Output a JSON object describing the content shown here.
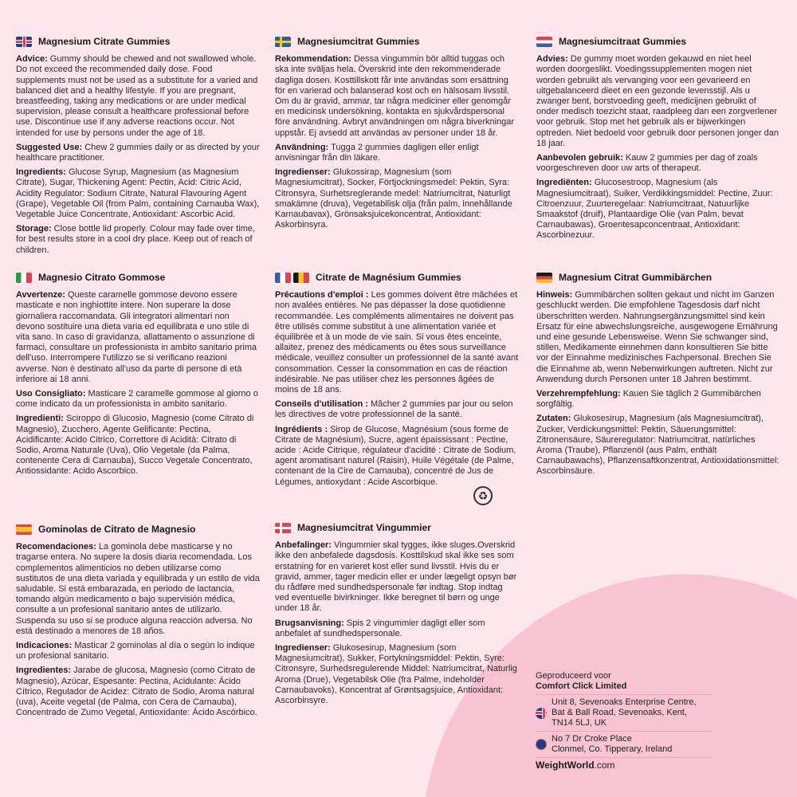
{
  "colors": {
    "background": "#fde6ec",
    "circle": "#f8c4d4"
  },
  "sections": {
    "en": {
      "flag": "uk-flag",
      "title": "Magnesium Citrate Gummies",
      "paras": [
        {
          "label": "Advice:",
          "text": " Gummy should be chewed and not swallowed whole. Do not exceed the recommended daily dose. Food supplements must not be used as a substitute for a varied and balanced diet and a healthy lifestyle. If you are pregnant, breastfeeding, taking any medications or are under medical supervision, please consult a healthcare professional before use. Discontinue use if any adverse reactions occur. Not intended for use by persons under the age of 18."
        },
        {
          "label": "Suggested Use:",
          "text": " Chew 2 gummies daily or as directed by your healthcare practitioner."
        },
        {
          "label": "Ingredients:",
          "text": " Glucose Syrup, Magnesium (as Magnesium Citrate), Sugar, Thickening Agent: Pectin, Acid: Citric Acid, Acidity Regulator: Sodium Citrate, Natural Flavouring Agent (Grape), Vegetable Oil (from Palm, containing Carnauba Wax), Vegetable Juice Concentrate, Antioxidant: Ascorbic Acid."
        },
        {
          "label": "Storage:",
          "text": " Close bottle lid properly. Colour may fade over time, for best results store in a cool dry place. Keep out of reach of children."
        }
      ]
    },
    "sv": {
      "flag": "sweden-flag",
      "title": "Magnesiumcitrat Gummies",
      "paras": [
        {
          "label": "Rekommendation:",
          "text": " Dessa vingummin bör alltid tuggas och ska inte sväljas hela. Överskrid inte den rekommenderade dagliga dosen. Kosttillskott får inte användas som ersättning för en varierad och balanserad kost och en hälsosam livsstil. Om du är gravid, ammar, tar några mediciner eller genomgår en medicinsk undersökning, kontakta en sjukvårdspersonal före användning. Avbryt användningen om några biverkningar uppstår. Ej avsedd att användas av personer under 18 år."
        },
        {
          "label": "Användning:",
          "text": " Tugga 2 gummies dagligen eller enligt anvisningar från din läkare."
        },
        {
          "label": "Ingredienser:",
          "text": " Glukossirap, Magnesium (som Magnesiumcitrat), Socker, Förtjockningsmedel: Pektin, Syra: Citronsyra, Surhetsreglerande medel: Natriumcitrat, Naturligt smakämne (druva), Vegetabilisk olja (från palm, innehållande Karnaubavax), Grönsaksjuicekoncentrat, Antioxidant: Askorbinsyra."
        }
      ]
    },
    "nl": {
      "flag": "netherlands-flag",
      "title": "Magnesiumcitraat Gummies",
      "paras": [
        {
          "label": "Advies:",
          "text": " De gummy moet worden gekauwd en niet heel worden doorgeslikt. Voedingssupplementen mogen niet worden gebruikt als vervanging voor een gevarieerd en uitgebalanceerd dieet en een gezonde levensstijl. Als u zwanger bent, borstvoeding geeft, medicijnen gebruikt of onder medisch toezicht staat, raadpleeg dan een zorgverlener voor gebruik. Stop met het gebruik als er bijwerkingen optreden. Niet bedoeld voor gebruik door personen jonger dan 18 jaar."
        },
        {
          "label": "Aanbevolen gebruik:",
          "text": " Kauw 2 gummies per dag of zoals voorgeschreven door uw arts of therapeut."
        },
        {
          "label": "Ingrediënten:",
          "text": " Glucosestroop, Magnesium (als Magnesiumcitraat), Suiker, Verdikkingsmiddel: Pectine, Zuur: Citroenzuur, Zuurteregelaar: Natriumcitraat, Natuurlijke Smaakstof (druif), Plantaardige Olie (van Palm, bevat Carnaubawas), Groentesapconcentraat, Antioxidant: Ascorbinezuur."
        }
      ]
    },
    "it": {
      "flag": "italy-flag",
      "title": "Magnesio Citrato Gommose",
      "paras": [
        {
          "label": "Avvertenze:",
          "text": " Queste caramelle gommose devono essere masticate e non inghiottite intere. Non superare la dose giornaliera raccomandata. Gli integratori alimentari non devono sostituire una dieta varia ed equilibrata e uno stile di vita sano. In caso di gravidanza, allattamento o assunzione di farmaci, consultare un professionista in ambito sanitario prima dell'uso. Interrompere l'utilizzo se si verificano reazioni avverse. Non è destinato all'uso da parte di persone di età inferiore ai 18 anni."
        },
        {
          "label": "Uso Consigliato:",
          "text": " Masticare 2 caramelle gommose al giorno o come indicato da un professionista in ambito sanitario."
        },
        {
          "label": "Ingredienti:",
          "text": " Sciroppo di Glucosio, Magnesio (come Citrato di Magnesio), Zucchero, Agente Gelificante: Pectina, Acidificante: Acido Citrico, Correttore di Acidità: Citrato di Sodio, Aroma Naturale (Uva), Olio Vegetale (da Palma, contenente Cera di Carnauba), Succo Vegetale Concentrato, Antiossidante: Acido Ascorbico."
        }
      ]
    },
    "fr": {
      "title": "Citrate de Magnésium Gummies",
      "paras": [
        {
          "label": "Précautions d'emploi :",
          "text": " Les gommes doivent être mâchées et non avalées entières. Ne pas dépasser la dose quotidienne recommandée. Les compléments alimentaires ne doivent pas être utilisés comme substitut à une alimentation variée et équilibrée et à un mode de vie sain. Si vous êtes enceinte, allaitez, prenez des médicaments ou êtes sous surveillance médicale, veuillez consulter un professionnel de la santé avant consommation. Cesser la consommation en cas de réaction indésirable. Ne pas utiliser chez les personnes âgées de moins de 18 ans."
        },
        {
          "label": "Conseils d'utilisation :",
          "text": " Mâcher 2 gummies par jour ou selon les directives de votre professionnel de la santé."
        },
        {
          "label": "Ingrédients :",
          "text": " Sirop de Glucose, Magnésium (sous forme de Citrate de Magnésium), Sucre, agent épaississant : Pectine, acide : Acide Citrique, régulateur d'acidité : Citrate de Sodium, agent aromatisant naturel (Raisin), Huile Végétale (de Palme, contenant de la Cire de Carnauba), concentré de Jus de Légumes, antioxydant : Acide Ascorbique."
        }
      ]
    },
    "de": {
      "flag": "germany-flag",
      "title": "Magnesium Citrat Gummibärchen",
      "paras": [
        {
          "label": "Hinweis:",
          "text": " Gummibärchen sollten gekaut und nicht im Ganzen geschluckt werden. Die empfohlene Tagesdosis darf nicht überschritten werden. Nahrungsergänzungsmittel sind kein Ersatz für eine abwechslungsreiche, ausgewogene Ernährung und eine gesunde Lebensweise. Wenn Sie schwanger sind, stillen, Medikamente einnehmen dann konsultieren Sie bitte vor der Einnahme medizinisches Fachpersonal. Brechen Sie die Einnahme ab, wenn Nebenwirkungen auftreten. Nicht zur Anwendung durch Personen unter 18 Jahren bestimmt."
        },
        {
          "label": "Verzehrempfehlung:",
          "text": " Kauen Sie täglich 2 Gummibärchen sorgfältig."
        },
        {
          "label": "Zutaten:",
          "text": " Glukosesirup, Magnesium (als Magnesiumcitrat), Zucker, Verdickungsmittel: Pektin, Säuerungsmittel: Zitronensäure, Säureregulator: Natriumcitrat, natürliches Aroma (Traube), Pflanzenöl (aus Palm, enthält Carnaubawachs), Pflanzensaftkonzentrat, Antioxidationsmittel: Ascorbinsäure."
        }
      ]
    },
    "es": {
      "flag": "spain-flag",
      "title": "Gominolas de Citrato de Magnesio",
      "paras": [
        {
          "label": "Recomendaciones:",
          "text": " La gominola debe masticarse y no tragarse entera. No supere la dosis diaria recomendada. Los complementos alimenticios no deben utilizarse como sustitutos de una dieta variada y equilibrada y un estilo de vida saludable. Si está embarazada, en periodo de lactancia, tomando algún medicamento o bajo supervisión médica, consulte a un profesional sanitario antes de utilizarlo. Suspenda su uso si se produce alguna reacción adversa. No está destinado a menores de 18 años."
        },
        {
          "label": "Indicaciones:",
          "text": " Masticar 2 gominolas al día o según lo indique un profesional sanitario."
        },
        {
          "label": "Ingredientes:",
          "text": " Jarabe de glucosa, Magnesio (como Citrato de Magnesio), Azúcar, Espesante: Pectina, Acidulante: Ácido Cítrico, Regulador de Acidez: Citrato de Sodio, Aroma natural (uva), Aceite vegetal (de Palma, con Cera de Carnauba), Concentrado de Zumo Vegetal, Antioxidante: Ácido Ascórbico."
        }
      ]
    },
    "da": {
      "flag": "denmark-flag",
      "title": "Magnesiumcitrat Vingummier",
      "paras": [
        {
          "label": "Anbefalinger:",
          "text": " Vingummier skal tygges, ikke sluges.Overskrid ikke den anbefalede dagsdosis. Kosttilskud skal ikke ses som erstatning for en varieret kost eller sund livsstil. Hvis du er gravid, ammer, tager medicin eller er under lægeligt opsyn bør du rådføre med sundhedspersonale før indtag. Stop indtag ved eventuelle bivirkninger. Ikke beregnet til børn og unge under 18 år."
        },
        {
          "label": "Brugsanvisning:",
          "text": " Spis 2 vingummier dagligt eller som anbefalet af sundhedspersonale."
        },
        {
          "label": "Ingredienser:",
          "text": " Glukosesirup, Magnesium (som Magnesiumcitrat), Sukker, Fortykningsmiddel: Pektin, Syre: Citronsyre, Surhedsregulerende Middel: Natriumcitrat, Naturlig Aroma (Drue), Vegetabilsk Olie (fra Palme, indeholder Carnaubavoks), Koncentrat af Grøntsagsjuice, Antioxidant: Ascorbinsyre."
        }
      ]
    }
  },
  "info": {
    "produced_for": "Geproduceerd voor",
    "company": "Comfort Click Limited",
    "address_uk": [
      "Unit 8, Sevenoaks Enterprise Centre,",
      "Bat & Ball Road, Sevenoaks, Kent,",
      "TN14 5LJ, UK"
    ],
    "address_eu": [
      "No 7 Dr Croke Place",
      "Clonmel, Co. Tipperary, Ireland"
    ],
    "brand_bold": "WeightWorld",
    "brand_suffix": ".com"
  },
  "icons": {
    "recycle": "triman-recycling-icon"
  }
}
